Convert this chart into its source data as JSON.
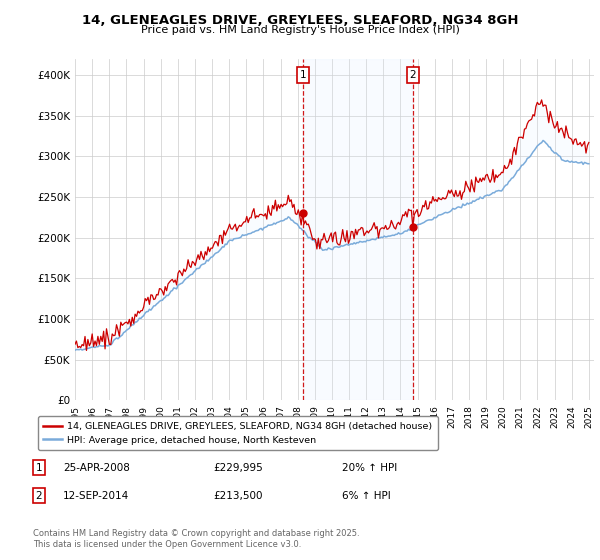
{
  "title": "14, GLENEAGLES DRIVE, GREYLEES, SLEAFORD, NG34 8GH",
  "subtitle": "Price paid vs. HM Land Registry's House Price Index (HPI)",
  "ylim": [
    0,
    420000
  ],
  "yticks": [
    0,
    50000,
    100000,
    150000,
    200000,
    250000,
    300000,
    350000,
    400000
  ],
  "ytick_labels": [
    "£0",
    "£50K",
    "£100K",
    "£150K",
    "£200K",
    "£250K",
    "£300K",
    "£350K",
    "£400K"
  ],
  "marker1_year": 2008.31,
  "marker2_year": 2014.71,
  "red_color": "#cc0000",
  "blue_color": "#7aabda",
  "shade_color": "#ddeeff",
  "legend1": "14, GLENEAGLES DRIVE, GREYLEES, SLEAFORD, NG34 8GH (detached house)",
  "legend2": "HPI: Average price, detached house, North Kesteven",
  "footnote": "Contains HM Land Registry data © Crown copyright and database right 2025.\nThis data is licensed under the Open Government Licence v3.0.",
  "background_color": "#ffffff",
  "grid_color": "#cccccc"
}
